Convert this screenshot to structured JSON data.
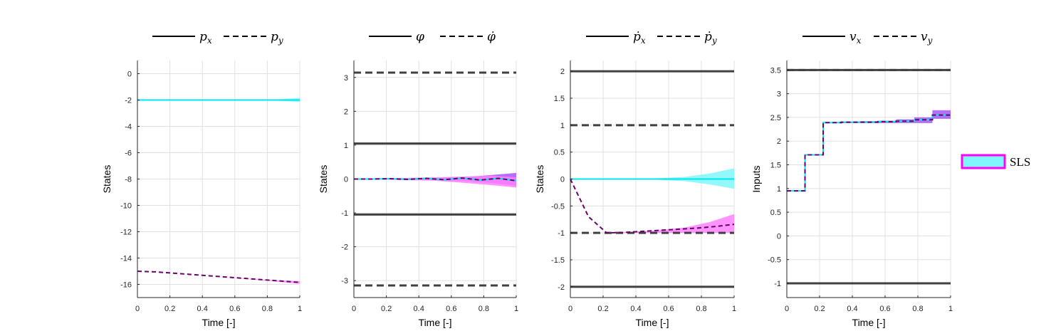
{
  "colors": {
    "bound": "#404040",
    "cyan": "#00E5EE",
    "cyan_band": "#7FF7FA",
    "magenta": "#FF00FF",
    "magenta_band": "#FF80FF",
    "purple_band": "#A855F7",
    "mean_line": "#6B006B",
    "grid": "#E0E0E0"
  },
  "figure_legend": {
    "label": "SLS"
  },
  "chart_data": [
    {
      "type": "line",
      "legend": [
        "p_x",
        "p_y"
      ],
      "xlabel": "Time [-]",
      "ylabel": "States",
      "xlim": [
        0,
        1
      ],
      "ylim": [
        -17,
        1
      ],
      "xticks": [
        "0",
        "0.2",
        "0.4",
        "0.6",
        "0.8",
        "1"
      ],
      "yticks": [
        {
          "v": 0,
          "t": "0"
        },
        {
          "v": -2,
          "t": "-2"
        },
        {
          "v": -4,
          "t": "-4"
        },
        {
          "v": -6,
          "t": "-6"
        },
        {
          "v": -8,
          "t": "-8"
        },
        {
          "v": -10,
          "t": "-10"
        },
        {
          "v": -12,
          "t": "-12"
        },
        {
          "v": -14,
          "t": "-14"
        },
        {
          "v": -16,
          "t": "-16"
        }
      ],
      "grid": true,
      "bounds": [],
      "bands": [
        {
          "color": "cyan_band",
          "x": [
            0,
            0.5,
            0.7,
            0.85,
            1
          ],
          "upper": [
            -2,
            -2,
            -1.98,
            -1.95,
            -1.85
          ],
          "lower": [
            -2,
            -2,
            -2.02,
            -2.05,
            -2.15
          ]
        },
        {
          "color": "magenta_band",
          "x": [
            0,
            0.5,
            0.8,
            1
          ],
          "upper": [
            -15,
            -15.42,
            -15.66,
            -15.75
          ],
          "lower": [
            -15,
            -15.42,
            -15.72,
            -15.95
          ]
        }
      ],
      "series": [
        {
          "name": "p_x",
          "dash": "solid",
          "color": "cyan",
          "x": [
            0,
            1
          ],
          "y": [
            -2,
            -2
          ]
        },
        {
          "name": "p_y",
          "dash": "dashed",
          "color": "mean_line",
          "x": [
            0,
            0.111,
            0.222,
            0.333,
            0.444,
            0.556,
            0.667,
            0.778,
            0.889,
            1
          ],
          "y": [
            -15.0,
            -15.05,
            -15.15,
            -15.25,
            -15.35,
            -15.45,
            -15.55,
            -15.65,
            -15.75,
            -15.85
          ]
        }
      ]
    },
    {
      "type": "line",
      "legend": [
        "φ",
        "φ̇"
      ],
      "xlabel": "Time [-]",
      "ylabel": "States",
      "xlim": [
        0,
        1
      ],
      "ylim": [
        -3.5,
        3.5
      ],
      "xticks": [
        "0",
        "0.2",
        "0.4",
        "0.6",
        "0.8",
        "1"
      ],
      "yticks": [
        {
          "v": 3,
          "t": "3"
        },
        {
          "v": 2,
          "t": "2"
        },
        {
          "v": 1,
          "t": "1"
        },
        {
          "v": 0,
          "t": "0"
        },
        {
          "v": -1,
          "t": "-1"
        },
        {
          "v": -2,
          "t": "-2"
        },
        {
          "v": -3,
          "t": "-3"
        }
      ],
      "grid": true,
      "bounds": [
        {
          "y": 3.1416,
          "dash": "dashed"
        },
        {
          "y": 1.0472,
          "dash": "solid"
        },
        {
          "y": -1.0472,
          "dash": "solid"
        },
        {
          "y": -3.1416,
          "dash": "dashed"
        }
      ],
      "bands": [
        {
          "color": "purple_band",
          "x": [
            0,
            0.5,
            0.7,
            0.85,
            1
          ],
          "upper": [
            0,
            0.03,
            0.06,
            0.12,
            0.18
          ],
          "lower": [
            0,
            -0.03,
            -0.06,
            -0.12,
            -0.2
          ]
        },
        {
          "color": "magenta_band",
          "x": [
            0,
            0.5,
            0.7,
            0.85,
            1
          ],
          "upper": [
            0,
            0.05,
            0.08,
            0.1,
            0.05
          ],
          "lower": [
            0,
            -0.05,
            -0.12,
            -0.18,
            -0.25
          ]
        }
      ],
      "series": [
        {
          "name": "φ",
          "dash": "solid",
          "color": "cyan",
          "x": [
            0,
            0.111,
            0.222,
            0.333,
            0.444,
            0.556,
            0.667,
            0.778,
            0.889,
            1
          ],
          "y": [
            0,
            0,
            0.01,
            -0.01,
            0.02,
            -0.02,
            0.03,
            -0.03,
            0.02,
            -0.05
          ]
        },
        {
          "name": "φ̇",
          "dash": "dashed",
          "color": "mean_line",
          "x": [
            0,
            0.111,
            0.222,
            0.333,
            0.444,
            0.556,
            0.667,
            0.778,
            0.889,
            1
          ],
          "y": [
            0,
            0,
            0.01,
            -0.01,
            0.02,
            -0.02,
            0.03,
            -0.03,
            0.02,
            -0.05
          ]
        }
      ]
    },
    {
      "type": "line",
      "legend": [
        "ṗ_x",
        "ṗ_y"
      ],
      "xlabel": "Time [-]",
      "ylabel": "States",
      "xlim": [
        0,
        1
      ],
      "ylim": [
        -2.2,
        2.2
      ],
      "xticks": [
        "0",
        "0.2",
        "0.4",
        "0.6",
        "0.8",
        "1"
      ],
      "yticks": [
        {
          "v": 2,
          "t": "2"
        },
        {
          "v": 1.5,
          "t": "1.5"
        },
        {
          "v": 1,
          "t": "1"
        },
        {
          "v": 0.5,
          "t": "0.5"
        },
        {
          "v": 0,
          "t": "0"
        },
        {
          "v": -0.5,
          "t": "-0.5"
        },
        {
          "v": -1,
          "t": "-1"
        },
        {
          "v": -1.5,
          "t": "-1.5"
        },
        {
          "v": -2,
          "t": "-2"
        }
      ],
      "grid": true,
      "bounds": [
        {
          "y": 2,
          "dash": "solid"
        },
        {
          "y": 1,
          "dash": "dashed"
        },
        {
          "y": -1,
          "dash": "dashed"
        },
        {
          "y": -2,
          "dash": "solid"
        }
      ],
      "bands": [
        {
          "color": "cyan_band",
          "x": [
            0,
            0.5,
            0.7,
            0.85,
            1
          ],
          "upper": [
            0,
            0.01,
            0.04,
            0.1,
            0.2
          ],
          "lower": [
            0,
            -0.01,
            -0.04,
            -0.1,
            -0.18
          ]
        },
        {
          "color": "magenta_band",
          "x": [
            0,
            0.111,
            0.222,
            0.5,
            0.7,
            0.85,
            1
          ],
          "upper": [
            0,
            -0.7,
            -1.0,
            -0.96,
            -0.9,
            -0.8,
            -0.65
          ],
          "lower": [
            0,
            -0.7,
            -1.0,
            -1.0,
            -1.0,
            -1.0,
            -1.0
          ]
        }
      ],
      "series": [
        {
          "name": "ṗ_x",
          "dash": "solid",
          "color": "cyan",
          "x": [
            0,
            1
          ],
          "y": [
            0,
            0
          ]
        },
        {
          "name": "ṗ_y",
          "dash": "dashed",
          "color": "mean_line",
          "x": [
            0,
            0.111,
            0.222,
            0.333,
            0.444,
            0.556,
            0.667,
            0.778,
            0.889,
            1
          ],
          "y": [
            0,
            -0.7,
            -1.0,
            -0.99,
            -0.97,
            -0.95,
            -0.93,
            -0.91,
            -0.88,
            -0.84
          ]
        }
      ]
    },
    {
      "type": "line",
      "legend": [
        "v_x",
        "v_y"
      ],
      "xlabel": "Time [-]",
      "ylabel": "Inputs",
      "xlim": [
        0,
        1
      ],
      "ylim": [
        -1.3,
        3.7
      ],
      "xticks": [
        "0",
        "0.2",
        "0.4",
        "0.6",
        "0.8",
        "1"
      ],
      "yticks": [
        {
          "v": 3.5,
          "t": "3.5"
        },
        {
          "v": 3,
          "t": "3"
        },
        {
          "v": 2.5,
          "t": "2.5"
        },
        {
          "v": 2,
          "t": "2"
        },
        {
          "v": 1.5,
          "t": "1.5"
        },
        {
          "v": 1,
          "t": "1"
        },
        {
          "v": 0.5,
          "t": "0.5"
        },
        {
          "v": 0,
          "t": "0"
        },
        {
          "v": -0.5,
          "t": "-0.5"
        },
        {
          "v": -1,
          "t": "-1"
        }
      ],
      "grid": true,
      "bounds": [
        {
          "y": 3.5,
          "dash": "solid"
        },
        {
          "y": 3.5,
          "dash": "dashed"
        },
        {
          "y": -1,
          "dash": "solid"
        },
        {
          "y": -1,
          "dash": "dashed"
        }
      ],
      "bands": [
        {
          "color": "purple_band",
          "step": true,
          "x": [
            0,
            0.111,
            0.222,
            0.333,
            0.444,
            0.556,
            0.667,
            0.778,
            0.889,
            1
          ],
          "upper": [
            0.95,
            1.71,
            2.4,
            2.41,
            2.42,
            2.43,
            2.46,
            2.5,
            2.65,
            2.65
          ],
          "lower": [
            0.95,
            1.71,
            2.39,
            2.38,
            2.38,
            2.38,
            2.38,
            2.38,
            2.47,
            2.47
          ]
        }
      ],
      "series": [
        {
          "name": "v_x",
          "dash": "solid",
          "step": true,
          "color": "cyan",
          "x": [
            0,
            0.111,
            0.222,
            0.333,
            0.444,
            0.556,
            0.667,
            0.778,
            0.889,
            1
          ],
          "y": [
            0.95,
            1.71,
            2.39,
            2.4,
            2.4,
            2.41,
            2.42,
            2.45,
            2.55,
            2.55
          ]
        },
        {
          "name": "v_y",
          "dash": "dashed",
          "step": true,
          "color": "mean_line",
          "x": [
            0,
            0.111,
            0.222,
            0.333,
            0.444,
            0.556,
            0.667,
            0.778,
            0.889,
            1
          ],
          "y": [
            0.95,
            1.71,
            2.39,
            2.4,
            2.4,
            2.41,
            2.42,
            2.45,
            2.55,
            2.55
          ]
        }
      ]
    }
  ]
}
